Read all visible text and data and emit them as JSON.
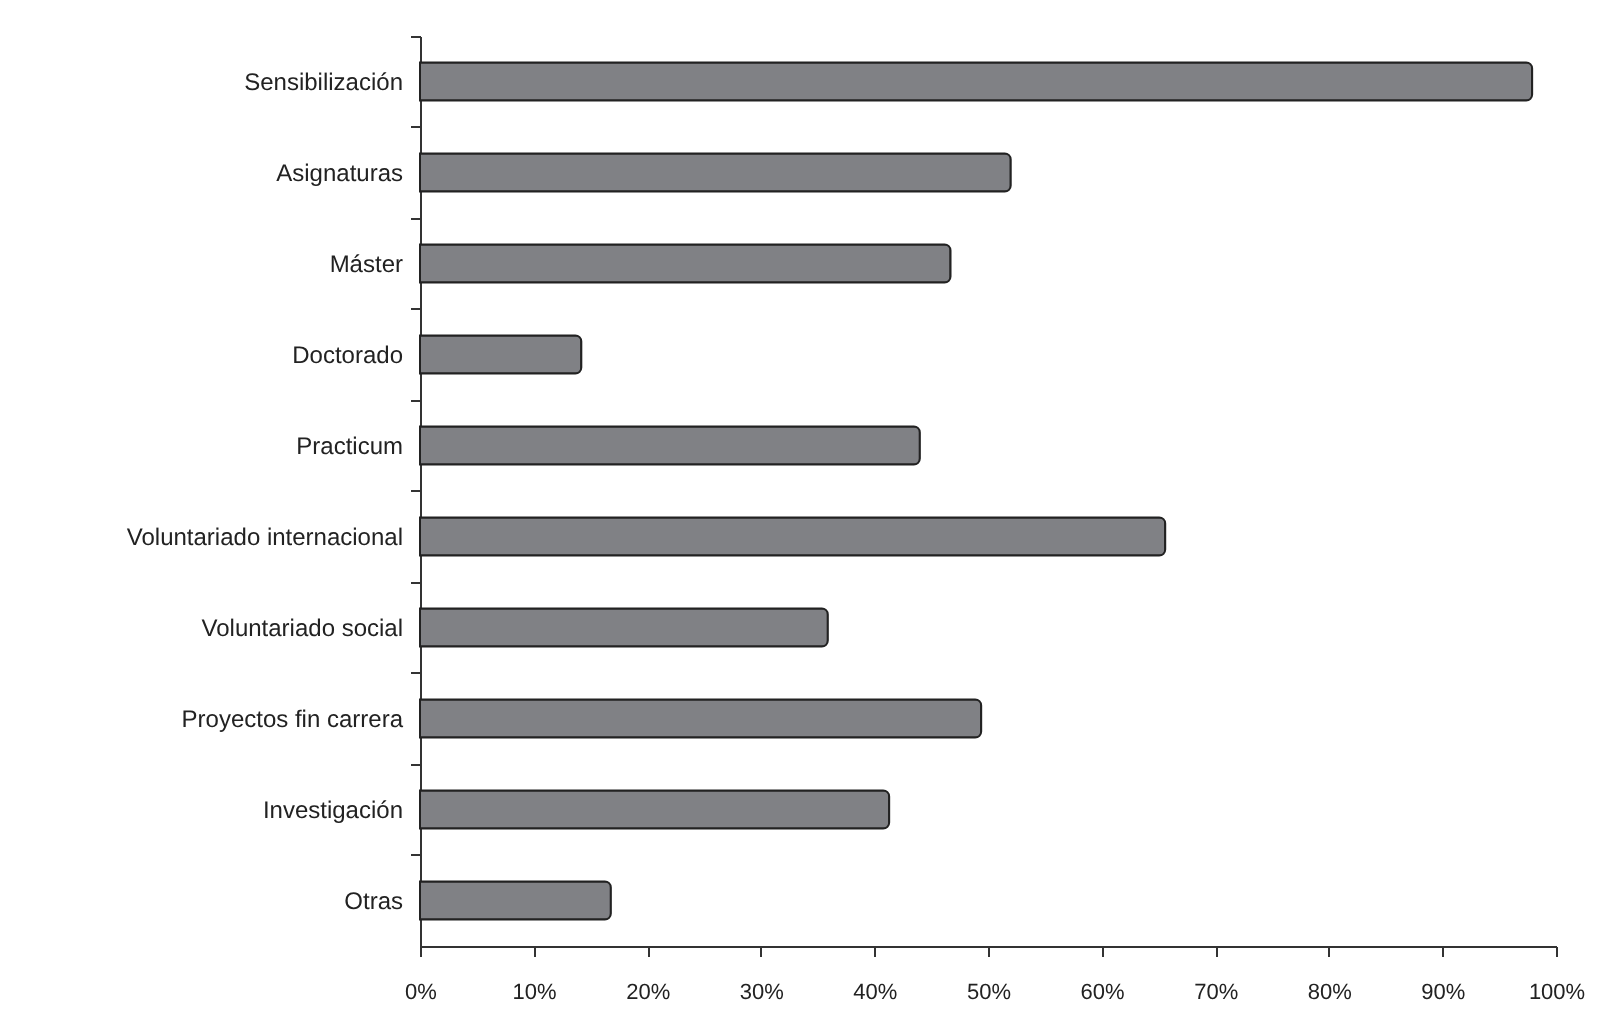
{
  "chart_data": {
    "type": "bar",
    "orientation": "horizontal",
    "categories": [
      "Sensibilización",
      "Asignaturas",
      "Máster",
      "Doctorado",
      "Practicum",
      "Voluntariado internacional",
      "Voluntariado social",
      "Proyectos fin carrera",
      "Investigación",
      "Otras"
    ],
    "values": [
      97.9,
      52.0,
      46.7,
      14.2,
      44.0,
      65.6,
      35.9,
      49.4,
      41.3,
      16.8
    ],
    "color": "#808185",
    "xlim": [
      0,
      100
    ],
    "xticks": [
      {
        "value": 0,
        "label": "0%"
      },
      {
        "value": 10,
        "label": "10%"
      },
      {
        "value": 20,
        "label": "20%"
      },
      {
        "value": 30,
        "label": "30%"
      },
      {
        "value": 40,
        "label": "40%"
      },
      {
        "value": 50,
        "label": "50%"
      },
      {
        "value": 60,
        "label": "60%"
      },
      {
        "value": 70,
        "label": "70%"
      },
      {
        "value": 80,
        "label": "80%"
      },
      {
        "value": 90,
        "label": "90%"
      },
      {
        "value": 100,
        "label": "100%"
      }
    ],
    "grid": false
  }
}
